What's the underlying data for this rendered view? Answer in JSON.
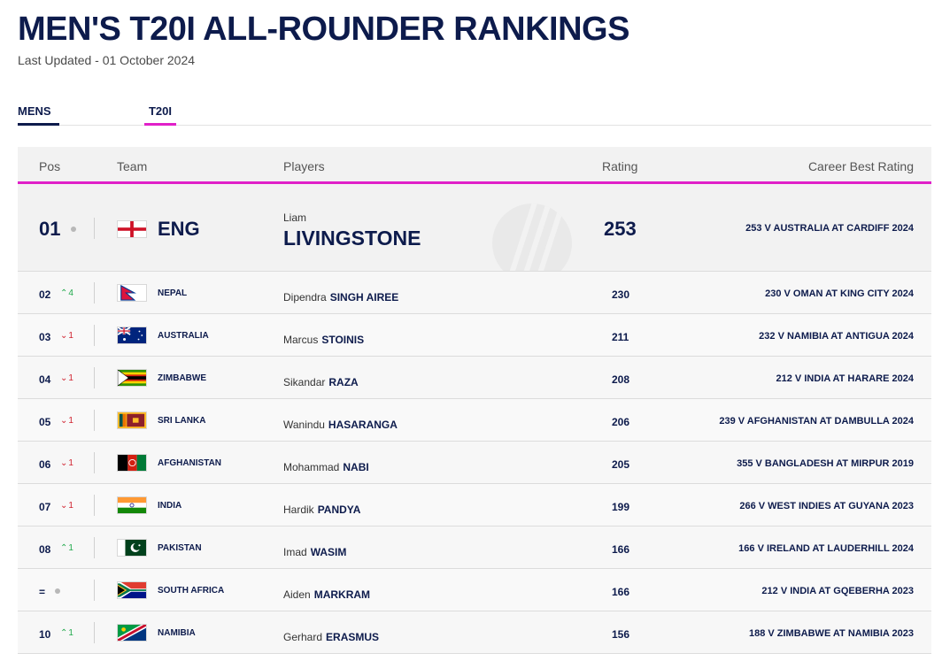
{
  "page": {
    "title": "MEN'S T20I ALL-ROUNDER RANKINGS",
    "last_updated": "Last Updated - 01 October 2024"
  },
  "tabs": [
    {
      "label": "MENS"
    },
    {
      "label": "T20I"
    }
  ],
  "table": {
    "headers": {
      "pos": "Pos",
      "team": "Team",
      "players": "Players",
      "rating": "Rating",
      "career_best": "Career Best Rating"
    },
    "top": {
      "pos": "01",
      "team": "ENG",
      "flag_icon": "england-flag-icon",
      "first_name": "Liam",
      "last_name": "LIVINGSTONE",
      "rating": "253",
      "career_best": "253 V AUSTRALIA AT CARDIFF 2024"
    },
    "rows": [
      {
        "pos": "02",
        "move": "4",
        "dir": "up",
        "team": "NEPAL",
        "first": "Dipendra",
        "last": "SINGH AIREE",
        "rating": "230",
        "best": "230 V OMAN AT KING CITY 2024"
      },
      {
        "pos": "03",
        "move": "1",
        "dir": "down",
        "team": "AUSTRALIA",
        "first": "Marcus",
        "last": "STOINIS",
        "rating": "211",
        "best": "232 V NAMIBIA AT ANTIGUA 2024"
      },
      {
        "pos": "04",
        "move": "1",
        "dir": "down",
        "team": "ZIMBABWE",
        "first": "Sikandar",
        "last": "RAZA",
        "rating": "208",
        "best": "212 V INDIA AT HARARE 2024"
      },
      {
        "pos": "05",
        "move": "1",
        "dir": "down",
        "team": "SRI LANKA",
        "first": "Wanindu",
        "last": "HASARANGA",
        "rating": "206",
        "best": "239 V AFGHANISTAN AT DAMBULLA 2024"
      },
      {
        "pos": "06",
        "move": "1",
        "dir": "down",
        "team": "AFGHANISTAN",
        "first": "Mohammad",
        "last": "NABI",
        "rating": "205",
        "best": "355 V BANGLADESH AT MIRPUR 2019"
      },
      {
        "pos": "07",
        "move": "1",
        "dir": "down",
        "team": "INDIA",
        "first": "Hardik",
        "last": "PANDYA",
        "rating": "199",
        "best": "266 V WEST INDIES AT GUYANA 2023"
      },
      {
        "pos": "08",
        "move": "1",
        "dir": "up",
        "team": "PAKISTAN",
        "first": "Imad",
        "last": "WASIM",
        "rating": "166",
        "best": "166 V IRELAND AT LAUDERHILL 2024"
      },
      {
        "pos": "=",
        "move": "",
        "dir": "none",
        "team": "SOUTH AFRICA",
        "first": "Aiden",
        "last": "MARKRAM",
        "rating": "166",
        "best": "212 V INDIA AT GQEBERHA 2023"
      },
      {
        "pos": "10",
        "move": "1",
        "dir": "up",
        "team": "NAMIBIA",
        "first": "Gerhard",
        "last": "ERASMUS",
        "rating": "156",
        "best": "188 V ZIMBABWE AT NAMIBIA 2023"
      }
    ]
  },
  "colors": {
    "navy": "#0d1b4c",
    "accent_pink": "#e020c8",
    "up_green": "#21a94c",
    "down_red": "#d0222f"
  }
}
